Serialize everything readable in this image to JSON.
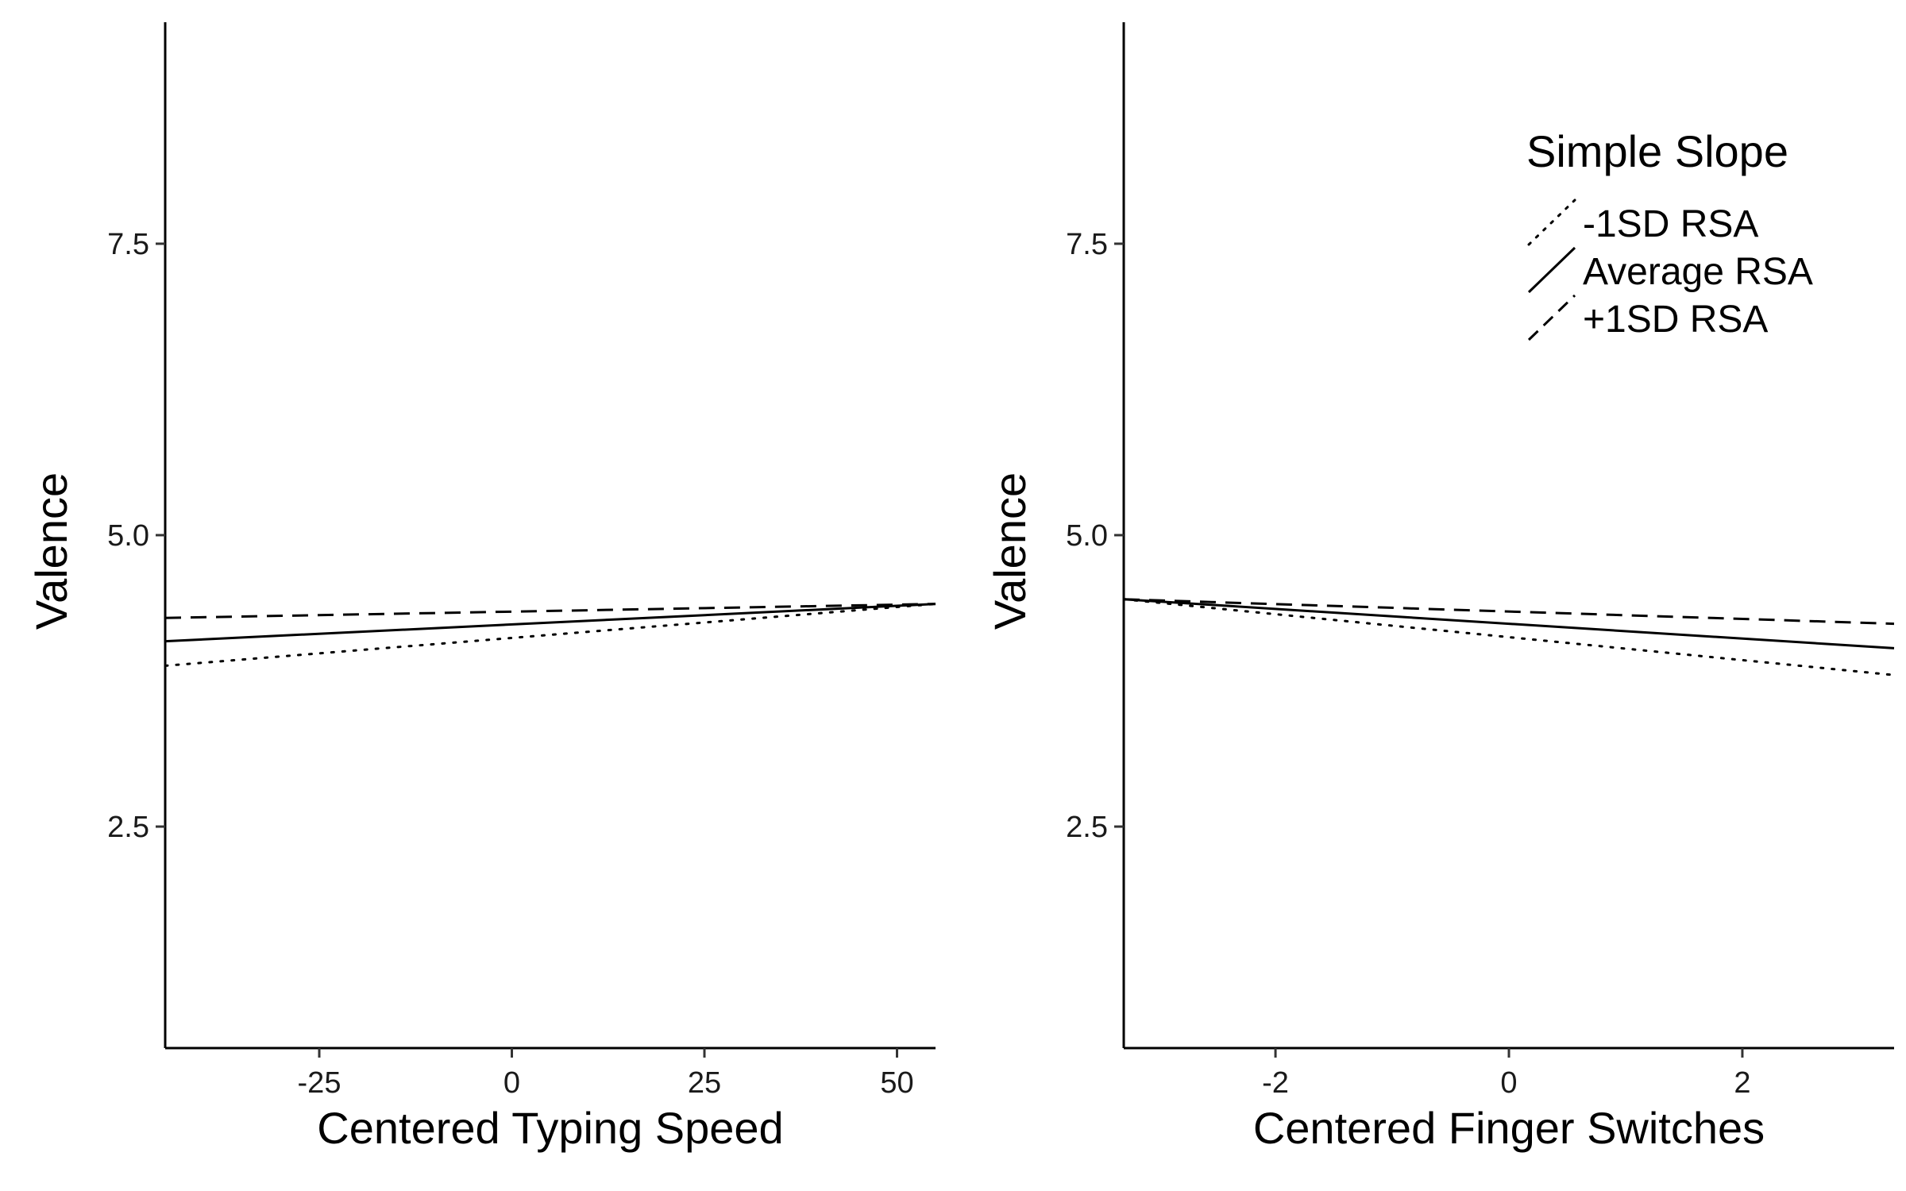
{
  "chart_data": [
    {
      "type": "line",
      "title": "",
      "xlabel": "Centered Typing Speed",
      "ylabel": "Valence",
      "xlim": [
        -45,
        55
      ],
      "ylim": [
        0.6,
        9.4
      ],
      "xticks": [
        -25,
        0,
        25,
        50
      ],
      "xtick_labels": [
        "-25",
        "0",
        "25",
        "50"
      ],
      "yticks": [
        2.5,
        5.0,
        7.5
      ],
      "ytick_labels": [
        "2.5",
        "5.0",
        "7.5"
      ],
      "grid": false,
      "series": [
        {
          "name": "-1SD RSA",
          "style": "dotted",
          "x": [
            -45,
            55
          ],
          "y": [
            3.88,
            4.41
          ]
        },
        {
          "name": "Average RSA",
          "style": "solid",
          "x": [
            -45,
            55
          ],
          "y": [
            4.09,
            4.41
          ]
        },
        {
          "name": "+1SD RSA",
          "style": "dashed",
          "x": [
            -45,
            55
          ],
          "y": [
            4.29,
            4.41
          ]
        }
      ]
    },
    {
      "type": "line",
      "title": "",
      "xlabel": "Centered Finger Switches",
      "ylabel": "Valence",
      "xlim": [
        -3.3,
        3.3
      ],
      "ylim": [
        0.6,
        9.4
      ],
      "xticks": [
        -2,
        0,
        2
      ],
      "xtick_labels": [
        "-2",
        "0",
        "2"
      ],
      "yticks": [
        2.5,
        5.0,
        7.5
      ],
      "ytick_labels": [
        "2.5",
        "5.0",
        "7.5"
      ],
      "grid": false,
      "legend": {
        "title": "Simple Slope",
        "position": "top-right"
      },
      "series": [
        {
          "name": "-1SD RSA",
          "style": "dotted",
          "x": [
            -3.3,
            3.3
          ],
          "y": [
            4.45,
            3.8
          ]
        },
        {
          "name": "Average RSA",
          "style": "solid",
          "x": [
            -3.3,
            3.3
          ],
          "y": [
            4.45,
            4.03
          ]
        },
        {
          "name": "+1SD RSA",
          "style": "dashed",
          "x": [
            -3.3,
            3.3
          ],
          "y": [
            4.45,
            4.24
          ]
        }
      ]
    }
  ]
}
